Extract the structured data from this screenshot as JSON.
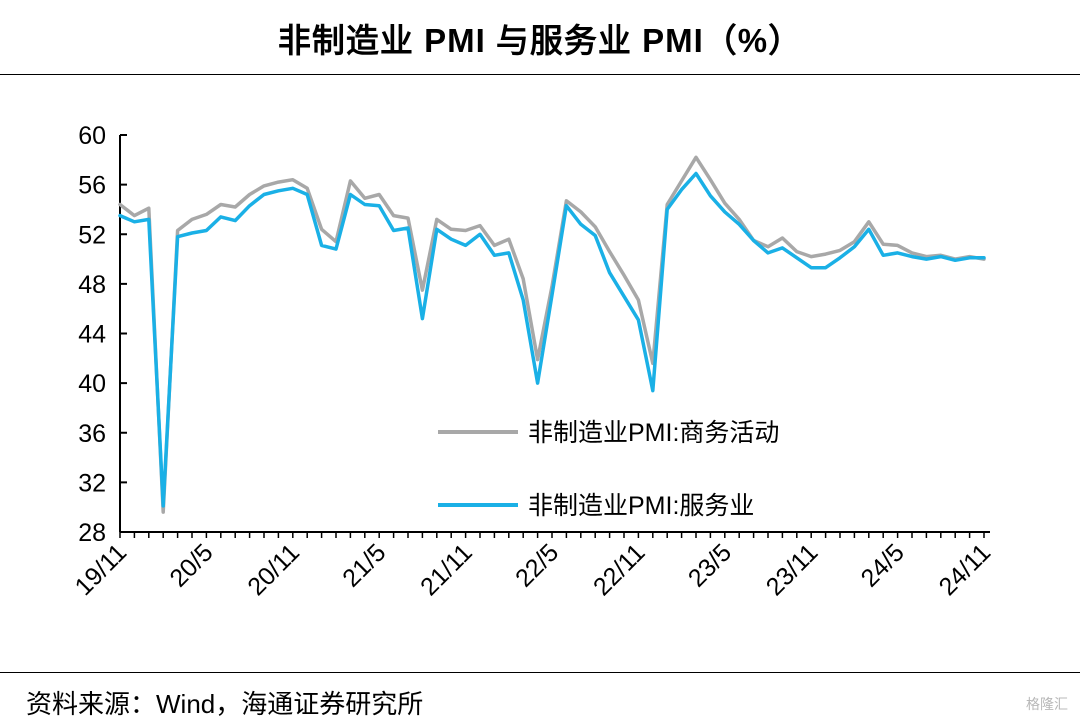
{
  "title": "非制造业 PMI 与服务业 PMI（%）",
  "source": "资料来源：Wind，海通证券研究所",
  "watermark": "格隆汇",
  "colors": {
    "series0": "#a8a8a8",
    "series1": "#1ab0e6",
    "axis": "#000000"
  },
  "chart_data": {
    "type": "line",
    "title": "非制造业 PMI 与服务业 PMI（%）",
    "ylim": [
      28,
      60
    ],
    "yticks": [
      28,
      32,
      36,
      40,
      44,
      48,
      52,
      56,
      60
    ],
    "xticks": [
      "19/11",
      "20/5",
      "20/11",
      "21/5",
      "21/11",
      "22/5",
      "22/11",
      "23/5",
      "23/11",
      "24/5",
      "24/11"
    ],
    "legend_position": "bottom-right",
    "grid": false,
    "x": [
      "19/11",
      "19/12",
      "20/1",
      "20/2",
      "20/3",
      "20/4",
      "20/5",
      "20/6",
      "20/7",
      "20/8",
      "20/9",
      "20/10",
      "20/11",
      "20/12",
      "21/1",
      "21/2",
      "21/3",
      "21/4",
      "21/5",
      "21/6",
      "21/7",
      "21/8",
      "21/9",
      "21/10",
      "21/11",
      "21/12",
      "22/1",
      "22/2",
      "22/3",
      "22/4",
      "22/5",
      "22/6",
      "22/7",
      "22/8",
      "22/9",
      "22/10",
      "22/11",
      "22/12",
      "23/1",
      "23/2",
      "23/3",
      "23/4",
      "23/5",
      "23/6",
      "23/7",
      "23/8",
      "23/9",
      "23/10",
      "23/11",
      "23/12",
      "24/1",
      "24/2",
      "24/3",
      "24/4",
      "24/5",
      "24/6",
      "24/7",
      "24/8",
      "24/9",
      "24/10",
      "24/11"
    ],
    "series": [
      {
        "name": "非制造业PMI:商务活动",
        "values": [
          54.4,
          53.5,
          54.1,
          29.6,
          52.3,
          53.2,
          53.6,
          54.4,
          54.2,
          55.2,
          55.9,
          56.2,
          56.4,
          55.7,
          52.4,
          51.4,
          56.3,
          54.9,
          55.2,
          53.5,
          53.3,
          47.5,
          53.2,
          52.4,
          52.3,
          52.7,
          51.1,
          51.6,
          48.4,
          41.9,
          47.8,
          54.7,
          53.8,
          52.6,
          50.6,
          48.7,
          46.7,
          41.6,
          54.4,
          56.3,
          58.2,
          56.4,
          54.5,
          53.2,
          51.5,
          51.0,
          51.7,
          50.6,
          50.2,
          50.4,
          50.7,
          51.4,
          53.0,
          51.2,
          51.1,
          50.5,
          50.2,
          50.3,
          50.0,
          50.2,
          50.0
        ]
      },
      {
        "name": "非制造业PMI:服务业",
        "values": [
          53.5,
          53.0,
          53.2,
          30.1,
          51.8,
          52.1,
          52.3,
          53.4,
          53.1,
          54.3,
          55.2,
          55.5,
          55.7,
          55.2,
          51.1,
          50.8,
          55.2,
          54.4,
          54.3,
          52.3,
          52.5,
          45.2,
          52.4,
          51.6,
          51.1,
          52.0,
          50.3,
          50.5,
          46.7,
          40.0,
          47.1,
          54.3,
          52.8,
          51.9,
          48.9,
          47.0,
          45.1,
          39.4,
          54.0,
          55.6,
          56.9,
          55.1,
          53.8,
          52.8,
          51.5,
          50.5,
          50.9,
          50.1,
          49.3,
          49.3,
          50.1,
          51.0,
          52.4,
          50.3,
          50.5,
          50.2,
          50.0,
          50.2,
          49.9,
          50.1,
          50.1
        ]
      }
    ]
  }
}
